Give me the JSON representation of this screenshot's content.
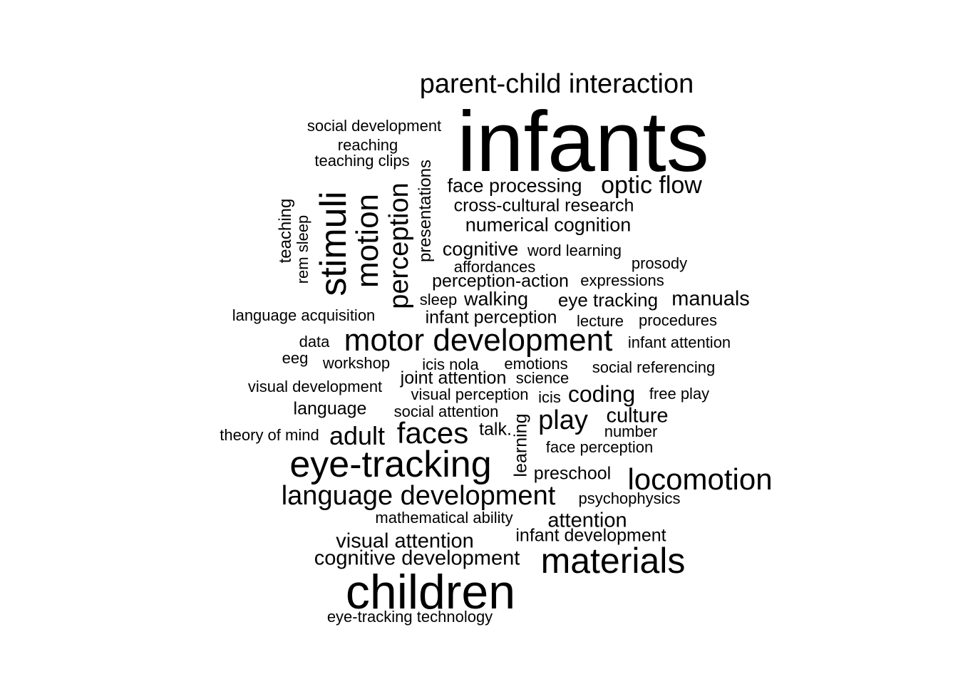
{
  "word_cloud": {
    "words": [
      "infants",
      "children",
      "eye-tracking",
      "materials",
      "motor development",
      "locomotion",
      "language development",
      "stimuli",
      "motion",
      "perception",
      "parent-child interaction",
      "faces",
      "adult",
      "optic flow",
      "play",
      "coding",
      "cognitive development",
      "visual attention",
      "attention",
      "manuals",
      "culture",
      "face processing",
      "numerical cognition",
      "cross-cultural research",
      "cognitive",
      "walking",
      "eye tracking",
      "infant perception",
      "perception-action",
      "infant development",
      "language",
      "joint attention",
      "presentations",
      "learning",
      "preschool",
      "talk.",
      "teaching",
      "social development",
      "reaching",
      "teaching clips",
      "word learning",
      "prosody",
      "affordances",
      "expressions",
      "sleep",
      "language acquisition",
      "lecture",
      "procedures",
      "data",
      "infant attention",
      "eeg",
      "workshop",
      "icis nola",
      "emotions",
      "social referencing",
      "visual development",
      "science",
      "visual perception",
      "icis",
      "free play",
      "social attention",
      "number",
      "theory of mind",
      "face perception",
      "psychophysics",
      "mathematical ability",
      "eye-tracking technology",
      "rem sleep"
    ]
  }
}
